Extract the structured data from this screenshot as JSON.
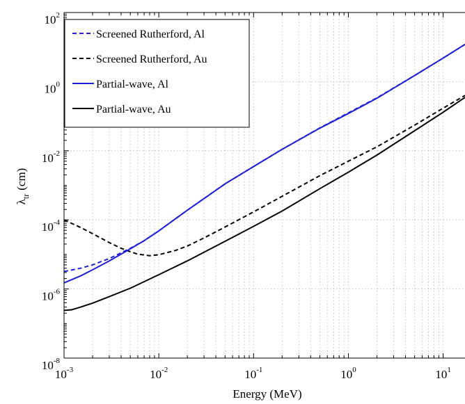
{
  "chart_data": {
    "type": "line",
    "title": "",
    "xlabel": "Energy (MeV)",
    "ylabel": {
      "main": "λ",
      "sub": "tr",
      "unit": "(cm)"
    },
    "xscale": "log",
    "yscale": "log",
    "xlim": [
      0.001,
      17
    ],
    "ylim": [
      1e-08,
      100
    ],
    "grid": true,
    "legend_position": "top-left",
    "x_ticks": [
      {
        "base": "10",
        "exp": "-3",
        "value": 0.001
      },
      {
        "base": "10",
        "exp": "-2",
        "value": 0.01
      },
      {
        "base": "10",
        "exp": "-1",
        "value": 0.1
      },
      {
        "base": "10",
        "exp": "0",
        "value": 1
      },
      {
        "base": "10",
        "exp": "1",
        "value": 10
      }
    ],
    "y_ticks": [
      {
        "base": "10",
        "exp": "-8",
        "value": 1e-08
      },
      {
        "base": "10",
        "exp": "-6",
        "value": 1e-06
      },
      {
        "base": "10",
        "exp": "-4",
        "value": 0.0001
      },
      {
        "base": "10",
        "exp": "-2",
        "value": 0.01
      },
      {
        "base": "10",
        "exp": "0",
        "value": 1
      },
      {
        "base": "10",
        "exp": "2",
        "value": 100
      }
    ],
    "series": [
      {
        "name": "Screened Rutherford, Al",
        "color": "#1f1fd6",
        "dash": "dashed",
        "x": [
          0.001,
          0.0015,
          0.002,
          0.003,
          0.005,
          0.007,
          0.01,
          0.02,
          0.05,
          0.1,
          0.2,
          0.5,
          1,
          2,
          5,
          10,
          17
        ],
        "y": [
          3.2e-06,
          4e-06,
          5e-06,
          7.6e-06,
          1.5e-05,
          2.5e-05,
          4.8e-05,
          0.00019,
          0.0011,
          0.0035,
          0.011,
          0.046,
          0.125,
          0.34,
          1.5,
          4.8,
          12
        ]
      },
      {
        "name": "Screened Rutherford, Au",
        "color": "#000000",
        "dash": "dashed",
        "x": [
          0.001,
          0.0015,
          0.002,
          0.003,
          0.004,
          0.005,
          0.006,
          0.008,
          0.01,
          0.015,
          0.02,
          0.03,
          0.05,
          0.1,
          0.2,
          0.5,
          1,
          2,
          5,
          10,
          17
        ],
        "y": [
          0.0001,
          6e-05,
          4e-05,
          2.2e-05,
          1.5e-05,
          1.2e-05,
          1.02e-05,
          9.2e-06,
          9.8e-06,
          1.3e-05,
          1.75e-05,
          3e-05,
          6.2e-05,
          0.00017,
          0.00048,
          0.0019,
          0.005,
          0.013,
          0.055,
          0.17,
          0.4
        ]
      },
      {
        "name": "Partial-wave, Al",
        "color": "#1f1fd6",
        "dash": "solid",
        "x": [
          0.001,
          0.0015,
          0.002,
          0.003,
          0.005,
          0.007,
          0.01,
          0.02,
          0.05,
          0.1,
          0.2,
          0.5,
          1,
          2,
          5,
          10,
          17
        ],
        "y": [
          1.5e-06,
          2.4e-06,
          3.6e-06,
          6.5e-06,
          1.45e-05,
          2.5e-05,
          4.8e-05,
          0.00019,
          0.0011,
          0.0035,
          0.011,
          0.045,
          0.12,
          0.33,
          1.5,
          4.8,
          12
        ]
      },
      {
        "name": "Partial-wave, Au",
        "color": "#000000",
        "dash": "solid",
        "x": [
          0.001,
          0.0012,
          0.0015,
          0.002,
          0.003,
          0.005,
          0.01,
          0.02,
          0.05,
          0.1,
          0.2,
          0.5,
          1,
          2,
          5,
          10,
          17
        ],
        "y": [
          2.4e-07,
          2.5e-07,
          3e-07,
          3.9e-07,
          6e-07,
          1.05e-06,
          2.6e-06,
          6.5e-06,
          2.4e-05,
          6.5e-05,
          0.00018,
          0.0008,
          0.0024,
          0.0075,
          0.038,
          0.13,
          0.35
        ]
      }
    ]
  }
}
